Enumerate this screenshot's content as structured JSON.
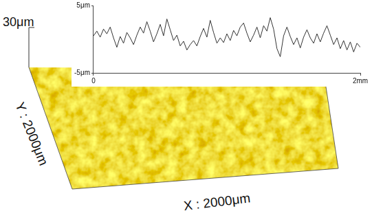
{
  "chart_data": {
    "type": "line",
    "x": [
      0,
      0.025,
      0.05,
      0.075,
      0.1,
      0.125,
      0.15,
      0.175,
      0.2,
      0.225,
      0.25,
      0.275,
      0.3,
      0.325,
      0.35,
      0.375,
      0.4,
      0.425,
      0.45,
      0.475,
      0.5,
      0.525,
      0.55,
      0.575,
      0.6,
      0.625,
      0.65,
      0.675,
      0.7,
      0.725,
      0.75,
      0.775,
      0.8,
      0.825,
      0.85,
      0.875,
      0.9,
      0.925,
      0.95,
      0.975,
      1.0,
      1.025,
      1.05,
      1.075,
      1.1,
      1.125,
      1.15,
      1.175,
      1.2,
      1.225,
      1.25,
      1.275,
      1.3,
      1.325,
      1.35,
      1.375,
      1.4,
      1.425,
      1.45,
      1.475,
      1.5,
      1.525,
      1.55,
      1.575,
      1.6,
      1.625,
      1.65,
      1.675,
      1.7,
      1.725,
      1.75,
      1.775,
      1.8,
      1.825,
      1.85,
      1.875,
      1.9,
      1.925,
      1.95,
      1.975,
      2.0
    ],
    "values": [
      0.5,
      1.2,
      0.3,
      1.5,
      0.8,
      1.8,
      0.2,
      -1.2,
      0.4,
      -0.6,
      1.0,
      0.2,
      -0.8,
      0.6,
      1.8,
      0.9,
      2.6,
      1.2,
      -0.4,
      0.8,
      2.2,
      0.5,
      3.0,
      1.4,
      -0.2,
      0.6,
      -1.0,
      -0.3,
      -1.6,
      -0.8,
      -0.2,
      -1.0,
      0.4,
      1.6,
      0.3,
      2.8,
      1.0,
      -0.6,
      0.2,
      -0.5,
      0.8,
      -0.2,
      1.3,
      0.5,
      1.8,
      2.4,
      0.9,
      -0.4,
      0.6,
      1.8,
      0.2,
      2.0,
      1.2,
      3.2,
      1.5,
      -1.4,
      -2.6,
      0.5,
      1.8,
      0.4,
      -0.8,
      0.2,
      -1.3,
      0.3,
      1.4,
      0.2,
      -0.6,
      0.8,
      -0.4,
      0.9,
      2.0,
      0.6,
      -0.8,
      0.2,
      -1.4,
      -0.2,
      -1.6,
      -0.4,
      -1.9,
      -0.6,
      -1.2
    ],
    "color": "#333333",
    "xlim": [
      0,
      2
    ],
    "xticks": [
      0,
      {
        "value": 2,
        "label": "2mm"
      }
    ],
    "ylim": [
      -5,
      5
    ],
    "yticks": [
      {
        "value": -5,
        "label": "-5μm"
      },
      {
        "value": 5,
        "label": "5μm"
      }
    ],
    "grid": false
  },
  "surface": {
    "z_axis_label": "30μm",
    "y_axis_label": "Y : 2000μm",
    "x_axis_label": "X : 2000μm"
  }
}
